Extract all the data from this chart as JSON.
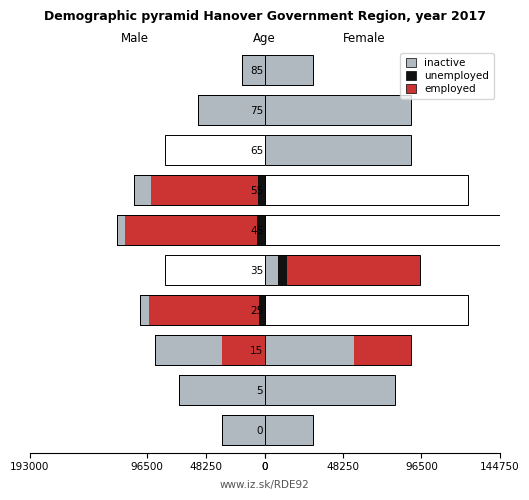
{
  "title": "Demographic pyramid Hanover Government Region, year 2017",
  "age_labels": [
    "85",
    "75",
    "65",
    "55",
    "45",
    "35",
    "25",
    "15",
    "5",
    "0"
  ],
  "male": {
    "inactive": [
      19000,
      55000,
      82000,
      14000,
      7000,
      82000,
      7000,
      55000,
      70000,
      35000
    ],
    "unemployed": [
      0,
      0,
      0,
      5500,
      6500,
      0,
      5000,
      0,
      0,
      0
    ],
    "employed": [
      0,
      0,
      0,
      88000,
      108000,
      0,
      90000,
      35000,
      0,
      0
    ]
  },
  "female": {
    "inactive": [
      30000,
      90000,
      90000,
      125000,
      145000,
      8000,
      125000,
      55000,
      80000,
      30000
    ],
    "unemployed": [
      0,
      0,
      0,
      0,
      0,
      5500,
      0,
      0,
      0,
      0
    ],
    "employed": [
      0,
      0,
      0,
      0,
      0,
      82000,
      0,
      35000,
      0,
      0
    ]
  },
  "colors": {
    "inactive": "#b0b8c0",
    "unemployed": "#111111",
    "employed": "#cc3333"
  },
  "male_white_bars": [
    2,
    5
  ],
  "female_white_bars": [],
  "xlim": 193000,
  "xlim_right": 144750,
  "xticks_left": [
    -193000,
    -96500,
    -48250,
    0
  ],
  "xtick_labels_left": [
    "193000",
    "96500",
    "48250",
    "0"
  ],
  "xticks_right": [
    0,
    48250,
    96500,
    144750
  ],
  "xtick_labels_right": [
    "0",
    "48250",
    "96500",
    "144750"
  ],
  "footer": "www.iz.sk/RDE92",
  "bar_height": 0.75
}
